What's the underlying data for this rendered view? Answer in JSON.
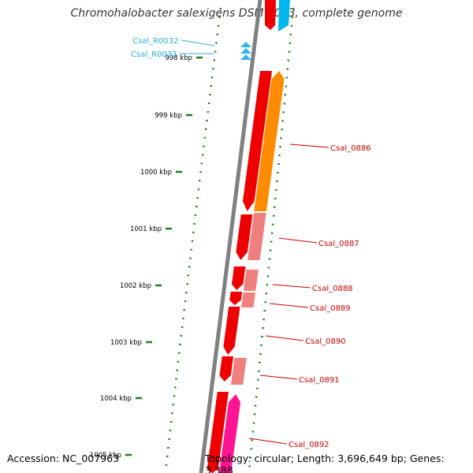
{
  "title": "Chromohalobacter salexigens DSM 3043, complete genome",
  "accession": "Accession: NC_007963",
  "summary": "Topology: circular; Length: 3,696,649 bp; Genes: 3,388",
  "colors": {
    "backbone": "#808080",
    "tick": "#1e7a1e",
    "rna_label": "#29aee0",
    "gene_label": "#cc0000",
    "strand_plus": "#ee0000",
    "strand_minus_orange": "#ff8c00",
    "strand_minus_pink": "#f08080",
    "strand_minus_magenta": "#ff1493",
    "cyan": "#00b7ee"
  },
  "ruler_ticks": [
    "998 kbp",
    "999 kbp",
    "1000 kbp",
    "1001 kbp",
    "1002 kbp",
    "1003 kbp",
    "1004 kbp",
    "1005 kbp"
  ],
  "rna_labels": [
    "Csal_R0032",
    "Csal_R0033"
  ],
  "gene_labels": [
    "Csal_0886",
    "Csal_0887",
    "Csal_0888",
    "Csal_0889",
    "Csal_0890",
    "Csal_0891",
    "Csal_0892"
  ]
}
